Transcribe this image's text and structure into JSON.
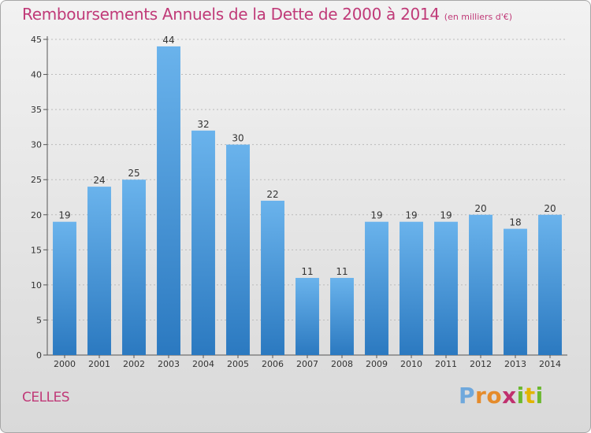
{
  "header": {
    "title": "Remboursements Annuels de la Dette de 2000 à 2014",
    "subtitle": "(en milliers d'€)"
  },
  "commune": "CELLES",
  "logo": {
    "text": "Proxiti"
  },
  "colors": {
    "bar_light": "#6ab3ec",
    "bar_dark": "#2b79c0",
    "title": "#c03a78",
    "grid": "#bbbbbb"
  },
  "chart_data": {
    "type": "bar",
    "title": "Remboursements Annuels de la Dette de 2000 à 2014",
    "subtitle": "(en milliers d'€)",
    "categories": [
      "2000",
      "2001",
      "2002",
      "2003",
      "2004",
      "2005",
      "2006",
      "2007",
      "2008",
      "2009",
      "2010",
      "2011",
      "2012",
      "2013",
      "2014"
    ],
    "values": [
      19,
      24,
      25,
      44,
      32,
      30,
      22,
      11,
      11,
      19,
      19,
      19,
      20,
      18,
      20
    ],
    "xlabel": "",
    "ylabel": "",
    "ylim": [
      0,
      45
    ],
    "yticks": [
      0,
      5,
      10,
      15,
      20,
      25,
      30,
      35,
      40,
      45
    ],
    "grid": true,
    "legend": "none"
  }
}
